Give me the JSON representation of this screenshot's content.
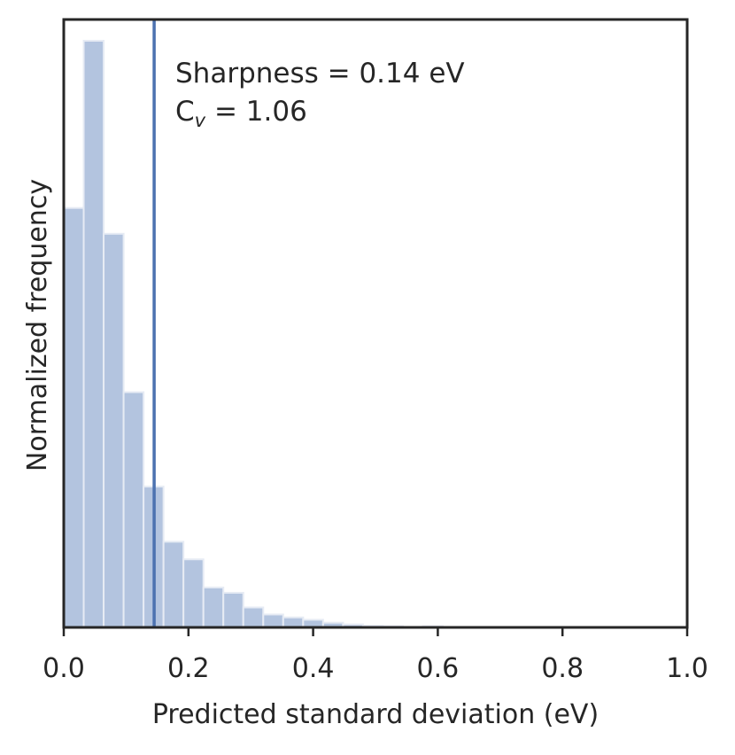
{
  "chart_data": {
    "type": "bar",
    "subtype": "histogram",
    "xlabel": "Predicted standard deviation (eV)",
    "ylabel": "Normalized frequency",
    "xlim": [
      0.0,
      1.0
    ],
    "ylim": [
      0.0,
      1.0
    ],
    "x_ticks": [
      "0.0",
      "0.2",
      "0.4",
      "0.6",
      "0.8",
      "1.0"
    ],
    "y_ticks_shown": false,
    "grid": false,
    "bin_width": 0.032,
    "bins": [
      {
        "x0": 0.0,
        "x1": 0.032,
        "value": 0.715
      },
      {
        "x0": 0.032,
        "x1": 0.064,
        "value": 1.0
      },
      {
        "x0": 0.064,
        "x1": 0.096,
        "value": 0.671
      },
      {
        "x0": 0.096,
        "x1": 0.128,
        "value": 0.401
      },
      {
        "x0": 0.128,
        "x1": 0.16,
        "value": 0.24
      },
      {
        "x0": 0.16,
        "x1": 0.192,
        "value": 0.146
      },
      {
        "x0": 0.192,
        "x1": 0.224,
        "value": 0.116
      },
      {
        "x0": 0.224,
        "x1": 0.256,
        "value": 0.068
      },
      {
        "x0": 0.256,
        "x1": 0.288,
        "value": 0.059
      },
      {
        "x0": 0.288,
        "x1": 0.32,
        "value": 0.034
      },
      {
        "x0": 0.32,
        "x1": 0.352,
        "value": 0.022
      },
      {
        "x0": 0.352,
        "x1": 0.384,
        "value": 0.017
      },
      {
        "x0": 0.384,
        "x1": 0.416,
        "value": 0.013
      },
      {
        "x0": 0.416,
        "x1": 0.448,
        "value": 0.008
      },
      {
        "x0": 0.448,
        "x1": 0.48,
        "value": 0.005
      },
      {
        "x0": 0.48,
        "x1": 0.512,
        "value": 0.003
      },
      {
        "x0": 0.512,
        "x1": 0.544,
        "value": 0.002
      },
      {
        "x0": 0.576,
        "x1": 0.608,
        "value": 0.002
      }
    ],
    "vline": {
      "x": 0.145,
      "color": "#4c72b0"
    },
    "annotations": [
      {
        "text": "Sharpness = 0.14 eV"
      },
      {
        "prefix": "C",
        "subscript": "v",
        "suffix": " = 1.06"
      }
    ],
    "colors": {
      "bar_fill": "#b3c4df",
      "bar_edge": "#e6ebf4",
      "vline": "#4c72b0",
      "axis": "#262626"
    }
  }
}
